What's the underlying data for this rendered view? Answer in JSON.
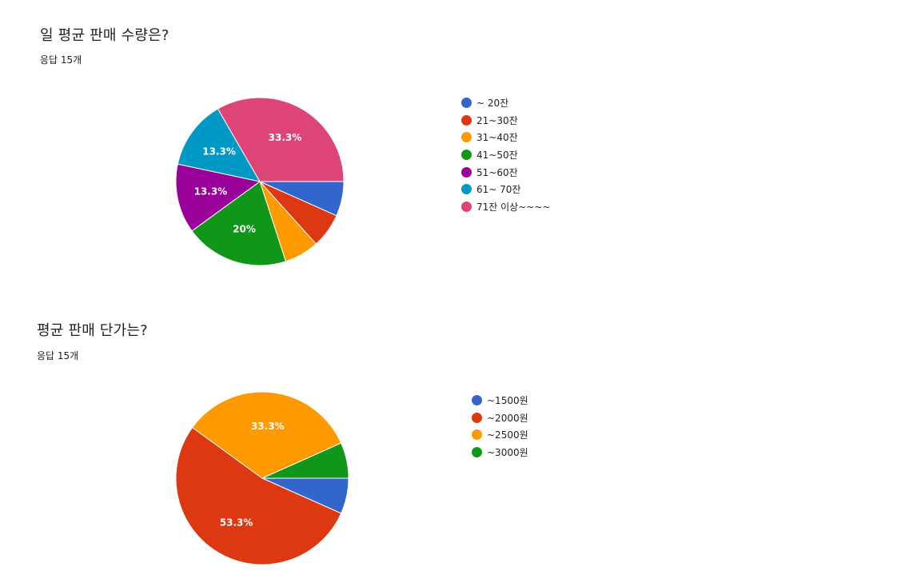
{
  "charts": [
    {
      "title": "일 평균 판매 수량은?",
      "response_count": "응답 15개",
      "legend_labels": [
        "~ 20잔",
        "21~30잔",
        "31~40잔",
        "41~50잔",
        "51~60잔",
        "61~ 70잔",
        "71잔 이상~~~~"
      ]
    },
    {
      "title": "평균 판매 단가는?",
      "response_count": "응답 15개",
      "legend_labels": [
        "~1500원",
        "~2000원",
        "~2500원",
        "~3000원"
      ]
    }
  ],
  "chart_data": [
    {
      "type": "pie",
      "title": "일 평균 판매 수량은?",
      "categories": [
        "~ 20잔",
        "21~30잔",
        "31~40잔",
        "41~50잔",
        "51~60잔",
        "61~ 70잔",
        "71잔 이상~~~~"
      ],
      "values": [
        1,
        1,
        1,
        3,
        2,
        2,
        5
      ],
      "percent_labels": [
        "",
        "",
        "",
        "20%",
        "13.3%",
        "13.3%",
        "33.3%"
      ],
      "colors": [
        "#3366cc",
        "#dc3912",
        "#ff9900",
        "#109618",
        "#990099",
        "#0099c6",
        "#dd4477"
      ],
      "legend_position": "right"
    },
    {
      "type": "pie",
      "title": "평균 판매 단가는?",
      "categories": [
        "~1500원",
        "~2000원",
        "~2500원",
        "~3000원"
      ],
      "values": [
        1,
        8,
        5,
        1
      ],
      "percent_labels": [
        "",
        "53.3%",
        "33.3%",
        ""
      ],
      "colors": [
        "#3366cc",
        "#dc3912",
        "#ff9900",
        "#109618"
      ],
      "legend_position": "right"
    }
  ]
}
